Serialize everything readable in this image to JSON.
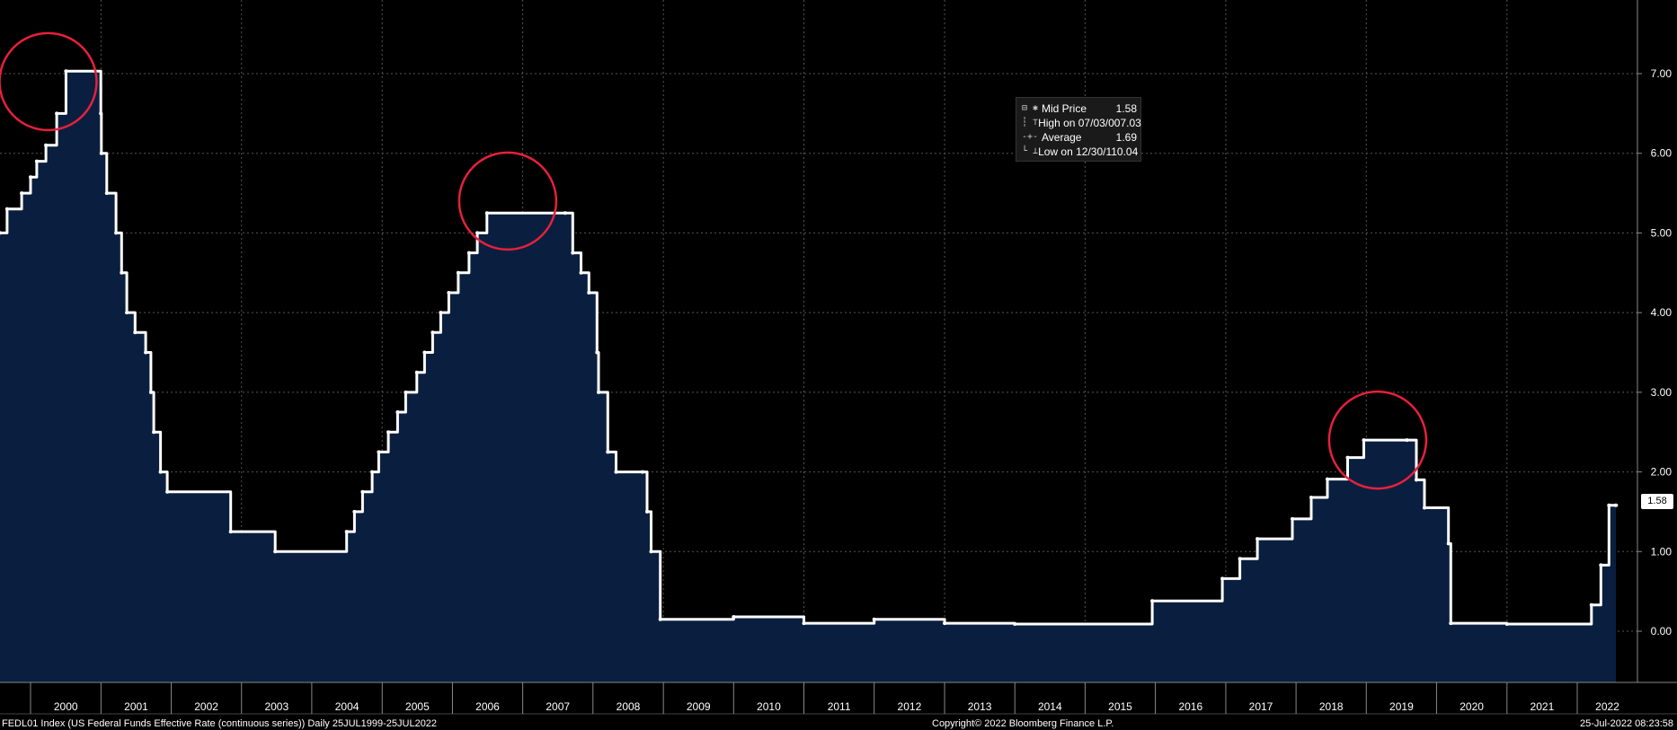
{
  "chart_data": {
    "type": "area",
    "ylim": [
      -0.6,
      7.7
    ],
    "y_ticks": [
      "7.00",
      "6.00",
      "5.00",
      "4.00",
      "3.00",
      "2.00",
      "1.00",
      "0.00"
    ],
    "x_ticks": [
      "2000",
      "2001",
      "2002",
      "2003",
      "2004",
      "2005",
      "2006",
      "2007",
      "2008",
      "2009",
      "2010",
      "2011",
      "2012",
      "2013",
      "2014",
      "2015",
      "2016",
      "2017",
      "2018",
      "2019",
      "2020",
      "2021",
      "2022"
    ],
    "grid": true,
    "colors": {
      "background": "#000000",
      "fill": "#0a1f3f",
      "line": "#ffffff",
      "grid": "#555555",
      "annotation_circle": "#e8203c"
    },
    "series": [
      {
        "name": "Mid Price",
        "x": [
          "1999-07-25",
          "1999-09-01",
          "1999-11-16",
          "2000-01-01",
          "2000-02-02",
          "2000-03-21",
          "2000-05-16",
          "2000-07-03",
          "2000-12-31",
          "2001-01-03",
          "2001-01-31",
          "2001-03-20",
          "2001-04-18",
          "2001-05-15",
          "2001-06-27",
          "2001-08-21",
          "2001-09-17",
          "2001-10-02",
          "2001-11-06",
          "2001-12-11",
          "2002-11-06",
          "2003-06-25",
          "2004-06-30",
          "2004-08-10",
          "2004-09-21",
          "2004-11-10",
          "2004-12-14",
          "2005-02-02",
          "2005-03-22",
          "2005-05-03",
          "2005-06-30",
          "2005-08-09",
          "2005-09-20",
          "2005-11-01",
          "2005-12-13",
          "2006-01-31",
          "2006-03-28",
          "2006-05-10",
          "2006-06-29",
          "2007-08-10",
          "2007-09-18",
          "2007-10-31",
          "2007-12-11",
          "2008-01-22",
          "2008-01-30",
          "2008-03-18",
          "2008-04-30",
          "2008-09-15",
          "2008-10-08",
          "2008-10-29",
          "2008-12-16",
          "2010-01-01",
          "2011-01-01",
          "2012-01-01",
          "2013-01-01",
          "2014-01-01",
          "2015-12-16",
          "2016-12-14",
          "2017-03-15",
          "2017-06-14",
          "2017-12-13",
          "2018-03-21",
          "2018-06-13",
          "2018-09-26",
          "2018-12-19",
          "2019-07-31",
          "2019-09-18",
          "2019-10-30",
          "2020-03-03",
          "2020-03-15",
          "2021-01-01",
          "2022-03-16",
          "2022-05-04",
          "2022-06-15",
          "2022-07-25"
        ],
        "values": [
          5.0,
          5.3,
          5.5,
          5.7,
          5.9,
          6.1,
          6.5,
          7.03,
          6.5,
          6.0,
          5.5,
          5.0,
          4.5,
          4.0,
          3.75,
          3.5,
          3.0,
          2.5,
          2.0,
          1.75,
          1.25,
          1.0,
          1.25,
          1.5,
          1.75,
          2.0,
          2.25,
          2.5,
          2.75,
          3.0,
          3.25,
          3.5,
          3.75,
          4.0,
          4.25,
          4.5,
          4.75,
          5.0,
          5.25,
          5.25,
          4.75,
          4.5,
          4.25,
          3.5,
          3.0,
          2.25,
          2.0,
          2.0,
          1.5,
          1.0,
          0.15,
          0.18,
          0.1,
          0.15,
          0.1,
          0.09,
          0.38,
          0.66,
          0.91,
          1.16,
          1.41,
          1.68,
          1.91,
          2.18,
          2.4,
          2.4,
          1.9,
          1.55,
          1.1,
          0.1,
          0.09,
          0.33,
          0.83,
          1.58,
          1.58
        ]
      }
    ],
    "legend": {
      "placement": "top-center-right",
      "rows": [
        {
          "symbol": "⊟ ✱",
          "label": "Mid Price",
          "value": "1.58"
        },
        {
          "symbol": "┆ ⊤",
          "label": "High on 07/03/00",
          "value": "7.03"
        },
        {
          "symbol": "-+-",
          "label": "Average",
          "value": "1.69"
        },
        {
          "symbol": "└ ⊥",
          "label": "Low on 12/30/11",
          "value": "0.04"
        }
      ]
    },
    "last_price_label": "1.58",
    "annotations": [
      {
        "type": "circle",
        "x": "2000-04-01",
        "y": 6.9
      },
      {
        "type": "circle",
        "x": "2006-10-15",
        "y": 5.4
      },
      {
        "type": "circle",
        "x": "2019-03-01",
        "y": 2.4
      }
    ]
  },
  "footer": {
    "left": "FEDL01 Index (US Federal Funds Effective Rate (continuous series))  Daily 25JUL1999-25JUL2022",
    "center": "Copyright© 2022 Bloomberg Finance L.P.",
    "right": "25-Jul-2022 08:23:58"
  }
}
